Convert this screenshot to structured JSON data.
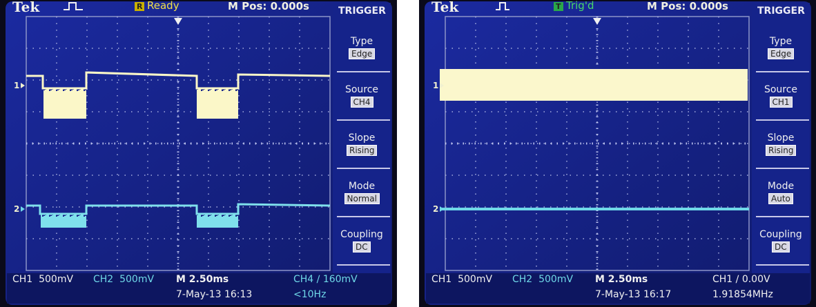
{
  "screens": [
    {
      "header": {
        "brand": "Tek",
        "status_icon": "R",
        "status": "Ready",
        "position": "M Pos: 0.000s"
      },
      "menu": {
        "title": "TRIGGER",
        "items": [
          {
            "label": "Type",
            "value": "Edge"
          },
          {
            "label": "Source",
            "value": "CH4"
          },
          {
            "label": "Slope",
            "value": "Rising"
          },
          {
            "label": "Mode",
            "value": "Normal"
          },
          {
            "label": "Coupling",
            "value": "DC"
          }
        ]
      },
      "channel_markers": [
        "1",
        "2"
      ],
      "footer": {
        "ch1": "CH1  500mV",
        "ch2": "CH2  500mV",
        "timebase": "M 2.50ms",
        "date": "7-May-13 16:13",
        "trigger": "CH4 ∕ 160mV",
        "frequency": "<10Hz"
      }
    },
    {
      "header": {
        "brand": "Tek",
        "status_icon": "T",
        "status": "Trig'd",
        "position": "M Pos: 0.000s"
      },
      "menu": {
        "title": "TRIGGER",
        "items": [
          {
            "label": "Type",
            "value": "Edge"
          },
          {
            "label": "Source",
            "value": "CH1"
          },
          {
            "label": "Slope",
            "value": "Rising"
          },
          {
            "label": "Mode",
            "value": "Auto"
          },
          {
            "label": "Coupling",
            "value": "DC"
          }
        ]
      },
      "channel_markers": [
        "1",
        "2"
      ],
      "footer": {
        "ch1": "CH1  500mV",
        "ch2": "CH2  500mV",
        "timebase": "M 2.50ms",
        "date": "7-May-13 16:17",
        "trigger": "CH1 ∕ 0.00V",
        "frequency": "1.91854MHz"
      }
    }
  ]
}
